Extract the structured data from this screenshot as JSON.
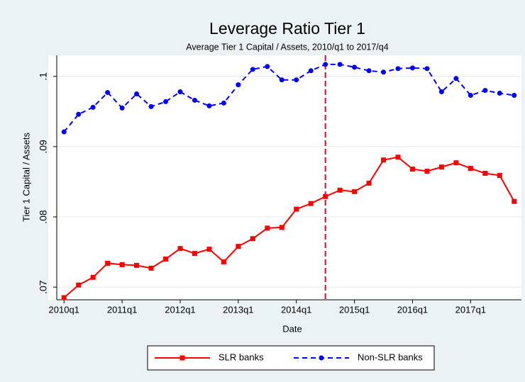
{
  "chart_data": {
    "type": "line",
    "title": "Leverage Ratio Tier 1",
    "subtitle": "Average Tier 1 Capital / Assets, 2010/q1 to 2017/q4",
    "x_label": "Date",
    "y_label": "Tier 1 Capital / Assets",
    "x": [
      0,
      1,
      2,
      3,
      4,
      5,
      6,
      7,
      8,
      9,
      10,
      11,
      12,
      13,
      14,
      15,
      16,
      17,
      18,
      19,
      20,
      21,
      22,
      23,
      24,
      25,
      26,
      27,
      28,
      29,
      30,
      31
    ],
    "xlim": [
      -0.5,
      31.5
    ],
    "xticks": [
      {
        "value": 0,
        "label": "2010q1"
      },
      {
        "value": 4,
        "label": "2011q1"
      },
      {
        "value": 8,
        "label": "2012q1"
      },
      {
        "value": 12,
        "label": "2013q1"
      },
      {
        "value": 16,
        "label": "2014q1"
      },
      {
        "value": 20,
        "label": "2015q1"
      },
      {
        "value": 24,
        "label": "2016q1"
      },
      {
        "value": 28,
        "label": "2017q1"
      }
    ],
    "ylim": [
      0.0682,
      0.103
    ],
    "yticks": [
      {
        "value": 0.07,
        "label": ".07"
      },
      {
        "value": 0.08,
        "label": ".08"
      },
      {
        "value": 0.09,
        "label": ".09"
      },
      {
        "value": 0.1,
        "label": ".1"
      }
    ],
    "grid": true,
    "vline": 18,
    "vline_color": "#c8102e",
    "series": [
      {
        "name": "SLR banks",
        "color": "#ff0000",
        "dash": false,
        "values": [
          0.0685,
          0.0703,
          0.0714,
          0.0734,
          0.0732,
          0.0731,
          0.0727,
          0.074,
          0.0755,
          0.0748,
          0.0754,
          0.0736,
          0.0758,
          0.0769,
          0.0784,
          0.0785,
          0.0811,
          0.0819,
          0.0829,
          0.0838,
          0.0836,
          0.0848,
          0.0881,
          0.0885,
          0.0868,
          0.0865,
          0.0871,
          0.0877,
          0.0869,
          0.0862,
          0.0859,
          0.0822
        ]
      },
      {
        "name": "Non-SLR banks",
        "color": "#0000ff",
        "dash": true,
        "values": [
          0.0921,
          0.0946,
          0.0956,
          0.0977,
          0.0955,
          0.0975,
          0.0957,
          0.0964,
          0.0978,
          0.0966,
          0.0958,
          0.0962,
          0.0988,
          0.101,
          0.1014,
          0.0995,
          0.0995,
          0.1008,
          0.1017,
          0.1017,
          0.1013,
          0.1008,
          0.1006,
          0.1011,
          0.1012,
          0.1011,
          0.0978,
          0.0997,
          0.0973,
          0.098,
          0.0976,
          0.0973
        ]
      }
    ]
  }
}
